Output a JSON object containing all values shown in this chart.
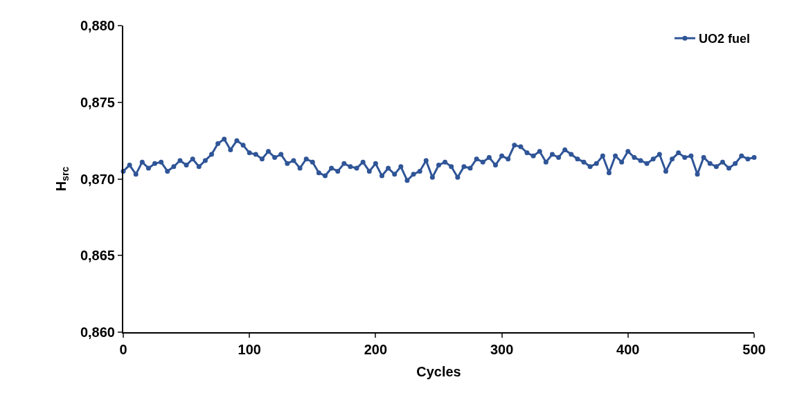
{
  "chart_data": {
    "type": "line",
    "xlabel": "Cycles",
    "ylabel": "H$_{src}$",
    "xlim": [
      0,
      500
    ],
    "xticks": [
      0,
      100,
      200,
      300,
      400,
      500
    ],
    "ylim": [
      0.86,
      0.88
    ],
    "yticks": [
      {
        "value": 0.86,
        "label": "0,860"
      },
      {
        "value": 0.865,
        "label": "0,865"
      },
      {
        "value": 0.87,
        "label": "0,870"
      },
      {
        "value": 0.875,
        "label": "0,875"
      },
      {
        "value": 0.88,
        "label": "0,880"
      }
    ],
    "legend": "top right",
    "marker": "circle",
    "x": [
      0,
      5,
      10,
      15,
      20,
      25,
      30,
      35,
      40,
      45,
      50,
      55,
      60,
      65,
      70,
      75,
      80,
      85,
      90,
      95,
      100,
      105,
      110,
      115,
      120,
      125,
      130,
      135,
      140,
      145,
      150,
      155,
      160,
      165,
      170,
      175,
      180,
      185,
      190,
      195,
      200,
      205,
      210,
      215,
      220,
      225,
      230,
      235,
      240,
      245,
      250,
      255,
      260,
      265,
      270,
      275,
      280,
      285,
      290,
      295,
      300,
      305,
      310,
      315,
      320,
      325,
      330,
      335,
      340,
      345,
      350,
      355,
      360,
      365,
      370,
      375,
      380,
      385,
      390,
      395,
      400,
      405,
      410,
      415,
      420,
      425,
      430,
      435,
      440,
      445,
      450,
      455,
      460,
      465,
      470,
      475,
      480,
      485,
      490,
      495,
      500
    ],
    "series": [
      {
        "name": "UO2 fuel",
        "color": "#2f5597",
        "values": [
          0.8705,
          0.8709,
          0.8703,
          0.8711,
          0.8707,
          0.871,
          0.8711,
          0.8705,
          0.8708,
          0.8712,
          0.8709,
          0.8713,
          0.8708,
          0.8712,
          0.8716,
          0.8723,
          0.8726,
          0.8719,
          0.8725,
          0.8722,
          0.8717,
          0.8716,
          0.8713,
          0.8718,
          0.8714,
          0.8716,
          0.871,
          0.8712,
          0.8707,
          0.8713,
          0.8711,
          0.8704,
          0.8702,
          0.8707,
          0.8705,
          0.871,
          0.8708,
          0.8707,
          0.8711,
          0.8705,
          0.871,
          0.8702,
          0.8707,
          0.8703,
          0.8708,
          0.8699,
          0.8703,
          0.8705,
          0.8712,
          0.8701,
          0.8709,
          0.8711,
          0.8708,
          0.8701,
          0.8708,
          0.8707,
          0.8713,
          0.8711,
          0.8714,
          0.8709,
          0.8715,
          0.8713,
          0.8722,
          0.8721,
          0.8717,
          0.8715,
          0.8718,
          0.8711,
          0.8716,
          0.8714,
          0.8719,
          0.8716,
          0.8713,
          0.8711,
          0.8708,
          0.871,
          0.8715,
          0.8704,
          0.8715,
          0.8711,
          0.8718,
          0.8714,
          0.8712,
          0.871,
          0.8713,
          0.8716,
          0.8705,
          0.8713,
          0.8717,
          0.8714,
          0.8715,
          0.8703,
          0.8714,
          0.871,
          0.8708,
          0.8711,
          0.8707,
          0.871,
          0.8715,
          0.8713,
          0.8714
        ]
      }
    ]
  }
}
